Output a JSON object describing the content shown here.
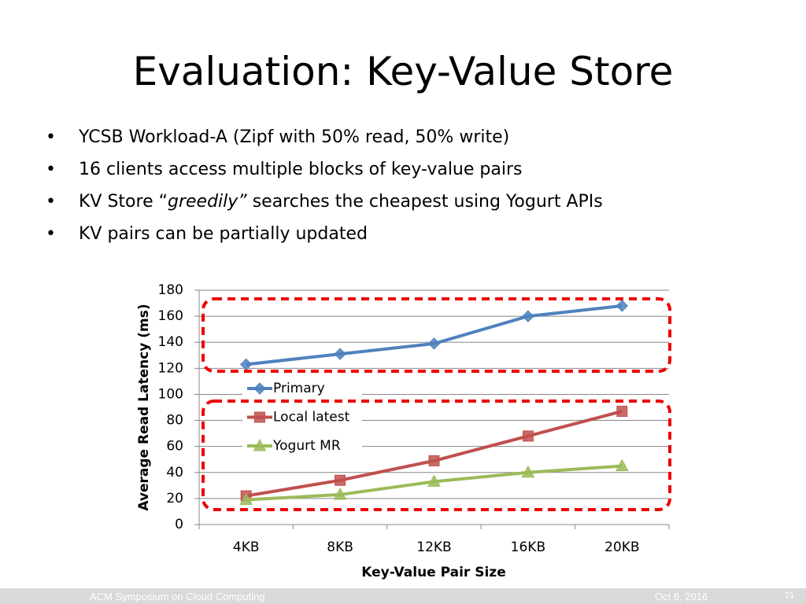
{
  "slide": {
    "title": "Evaluation: Key-Value Store",
    "bullets": [
      [
        "YCSB Workload-A (Zipf with 50% read, 50% write)"
      ],
      [
        "16 clients access multiple blocks of key-value pairs"
      ],
      [
        "KV Store “",
        "greedily”",
        " searches the cheapest using Yogurt APIs"
      ],
      [
        "KV pairs can be partially updated"
      ]
    ],
    "footer": {
      "left": "ACM Symposium on Cloud Computing",
      "date": "Oct 6, 2016",
      "page": "21"
    }
  },
  "chart_data": {
    "type": "line",
    "x_label": "Key-Value Pair Size",
    "y_label": "Average Read Latency (ms)",
    "categories": [
      "4KB",
      "8KB",
      "12KB",
      "16KB",
      "20KB"
    ],
    "series": [
      {
        "name": "Primary",
        "color": "#4f81bd",
        "marker": "diamond",
        "values": [
          123,
          131,
          139,
          160,
          168
        ]
      },
      {
        "name": "Local latest",
        "color": "#c0504d",
        "marker": "square",
        "values": [
          22,
          34,
          49,
          68,
          87
        ]
      },
      {
        "name": "Yogurt MR",
        "color": "#9bbb59",
        "marker": "triangle",
        "values": [
          19,
          23,
          33,
          40,
          45
        ]
      }
    ],
    "ylim": [
      0,
      180
    ],
    "yticks": [
      0,
      20,
      40,
      60,
      80,
      100,
      120,
      140,
      160,
      180
    ],
    "grid": true
  }
}
